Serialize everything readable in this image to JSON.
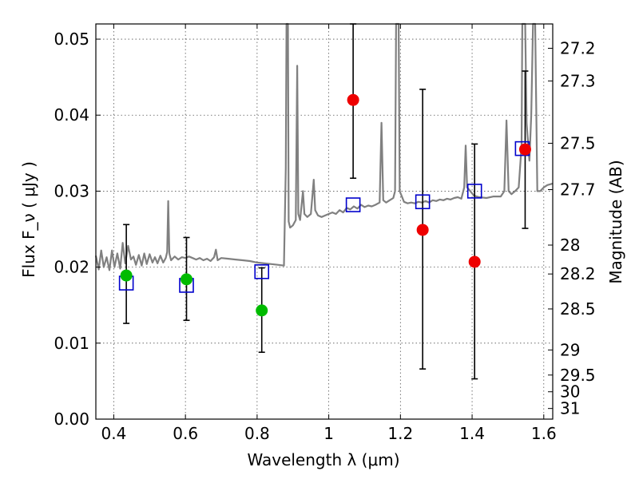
{
  "chart_data": {
    "type": "scatter",
    "xlabel": "Wavelength  λ (μm)",
    "ylabel": "Flux  F_ν  ( μJy )",
    "y2label": "Magnitude (AB)",
    "xlim": [
      0.35,
      1.625
    ],
    "ylim": [
      0.0,
      0.052
    ],
    "x_ticks": [
      0.4,
      0.6,
      0.8,
      1.0,
      1.2,
      1.4,
      1.6
    ],
    "x_tick_labels": [
      "0.4",
      "0.6",
      "0.8",
      "1",
      "1.2",
      "1.4",
      "1.6"
    ],
    "y_ticks": [
      0.0,
      0.01,
      0.02,
      0.03,
      0.04,
      0.05
    ],
    "y_tick_labels": [
      "0.00",
      "0.01",
      "0.02",
      "0.03",
      "0.04",
      "0.05"
    ],
    "mag_ticks": [
      {
        "label": "27.2",
        "flux": 0.0488
      },
      {
        "label": "27.3",
        "flux": 0.0445
      },
      {
        "label": "27.5",
        "flux": 0.0363
      },
      {
        "label": "27.7",
        "flux": 0.0302
      },
      {
        "label": "28",
        "flux": 0.0229
      },
      {
        "label": "28.2",
        "flux": 0.0191
      },
      {
        "label": "28.5",
        "flux": 0.0145
      },
      {
        "label": "29",
        "flux": 0.0091
      },
      {
        "label": "29.5",
        "flux": 0.0058
      },
      {
        "label": "30",
        "flux": 0.0036
      },
      {
        "label": "31",
        "flux": 0.0014
      }
    ],
    "grid": true,
    "colors": {
      "model": "#808080",
      "model_photometry": "#0000cc",
      "detected": "#00bb00",
      "upper": "#ee0000",
      "errorbar": "#000000"
    },
    "series": [
      {
        "kind": "model-spectrum",
        "points": [
          [
            0.35,
            0.0215
          ],
          [
            0.358,
            0.0197
          ],
          [
            0.365,
            0.0222
          ],
          [
            0.372,
            0.02
          ],
          [
            0.38,
            0.0213
          ],
          [
            0.388,
            0.0196
          ],
          [
            0.395,
            0.0222
          ],
          [
            0.402,
            0.02
          ],
          [
            0.41,
            0.0218
          ],
          [
            0.418,
            0.0198
          ],
          [
            0.425,
            0.0232
          ],
          [
            0.432,
            0.0205
          ],
          [
            0.44,
            0.0228
          ],
          [
            0.448,
            0.021
          ],
          [
            0.455,
            0.0214
          ],
          [
            0.462,
            0.0203
          ],
          [
            0.47,
            0.0216
          ],
          [
            0.478,
            0.0202
          ],
          [
            0.485,
            0.0218
          ],
          [
            0.492,
            0.0204
          ],
          [
            0.5,
            0.0217
          ],
          [
            0.508,
            0.0206
          ],
          [
            0.515,
            0.0213
          ],
          [
            0.522,
            0.0205
          ],
          [
            0.53,
            0.0215
          ],
          [
            0.538,
            0.0206
          ],
          [
            0.545,
            0.0212
          ],
          [
            0.549,
            0.022
          ],
          [
            0.552,
            0.0287
          ],
          [
            0.555,
            0.0218
          ],
          [
            0.56,
            0.0209
          ],
          [
            0.57,
            0.0214
          ],
          [
            0.58,
            0.021
          ],
          [
            0.59,
            0.0213
          ],
          [
            0.6,
            0.0212
          ],
          [
            0.61,
            0.0214
          ],
          [
            0.62,
            0.0212
          ],
          [
            0.63,
            0.021
          ],
          [
            0.64,
            0.0212
          ],
          [
            0.65,
            0.0209
          ],
          [
            0.66,
            0.0211
          ],
          [
            0.67,
            0.0208
          ],
          [
            0.68,
            0.0213
          ],
          [
            0.685,
            0.0223
          ],
          [
            0.69,
            0.0209
          ],
          [
            0.7,
            0.0212
          ],
          [
            0.72,
            0.0211
          ],
          [
            0.74,
            0.021
          ],
          [
            0.76,
            0.0209
          ],
          [
            0.78,
            0.0208
          ],
          [
            0.8,
            0.0206
          ],
          [
            0.82,
            0.0205
          ],
          [
            0.84,
            0.0204
          ],
          [
            0.86,
            0.0203
          ],
          [
            0.875,
            0.0202
          ],
          [
            0.88,
            0.033
          ],
          [
            0.882,
            0.052
          ],
          [
            0.886,
            0.052
          ],
          [
            0.888,
            0.026
          ],
          [
            0.892,
            0.0252
          ],
          [
            0.9,
            0.0255
          ],
          [
            0.908,
            0.0262
          ],
          [
            0.912,
            0.0465
          ],
          [
            0.915,
            0.027
          ],
          [
            0.92,
            0.0262
          ],
          [
            0.928,
            0.03
          ],
          [
            0.932,
            0.027
          ],
          [
            0.94,
            0.0266
          ],
          [
            0.95,
            0.027
          ],
          [
            0.958,
            0.0315
          ],
          [
            0.962,
            0.0275
          ],
          [
            0.97,
            0.0268
          ],
          [
            0.98,
            0.0266
          ],
          [
            0.99,
            0.0268
          ],
          [
            1.0,
            0.027
          ],
          [
            1.01,
            0.0272
          ],
          [
            1.02,
            0.027
          ],
          [
            1.03,
            0.0275
          ],
          [
            1.04,
            0.0272
          ],
          [
            1.05,
            0.0278
          ],
          [
            1.06,
            0.0276
          ],
          [
            1.07,
            0.028
          ],
          [
            1.08,
            0.0277
          ],
          [
            1.09,
            0.0282
          ],
          [
            1.1,
            0.0279
          ],
          [
            1.11,
            0.0281
          ],
          [
            1.12,
            0.028
          ],
          [
            1.13,
            0.0282
          ],
          [
            1.142,
            0.0285
          ],
          [
            1.147,
            0.039
          ],
          [
            1.152,
            0.0288
          ],
          [
            1.16,
            0.0285
          ],
          [
            1.17,
            0.0288
          ],
          [
            1.18,
            0.0291
          ],
          [
            1.185,
            0.03
          ],
          [
            1.188,
            0.052
          ],
          [
            1.195,
            0.052
          ],
          [
            1.198,
            0.03
          ],
          [
            1.21,
            0.0286
          ],
          [
            1.22,
            0.0284
          ],
          [
            1.23,
            0.0285
          ],
          [
            1.24,
            0.0284
          ],
          [
            1.25,
            0.0286
          ],
          [
            1.26,
            0.0285
          ],
          [
            1.27,
            0.0287
          ],
          [
            1.28,
            0.0285
          ],
          [
            1.29,
            0.0288
          ],
          [
            1.3,
            0.0287
          ],
          [
            1.31,
            0.0289
          ],
          [
            1.32,
            0.0288
          ],
          [
            1.33,
            0.029
          ],
          [
            1.34,
            0.0289
          ],
          [
            1.35,
            0.0291
          ],
          [
            1.36,
            0.0292
          ],
          [
            1.37,
            0.029
          ],
          [
            1.378,
            0.0305
          ],
          [
            1.382,
            0.036
          ],
          [
            1.386,
            0.0305
          ],
          [
            1.395,
            0.03
          ],
          [
            1.405,
            0.0294
          ],
          [
            1.42,
            0.0292
          ],
          [
            1.44,
            0.0291
          ],
          [
            1.46,
            0.0293
          ],
          [
            1.48,
            0.0293
          ],
          [
            1.49,
            0.03
          ],
          [
            1.496,
            0.0393
          ],
          [
            1.502,
            0.03
          ],
          [
            1.51,
            0.0296
          ],
          [
            1.52,
            0.03
          ],
          [
            1.53,
            0.0305
          ],
          [
            1.538,
            0.036
          ],
          [
            1.54,
            0.052
          ],
          [
            1.548,
            0.052
          ],
          [
            1.552,
            0.039
          ],
          [
            1.56,
            0.034
          ],
          [
            1.565,
            0.04
          ],
          [
            1.57,
            0.052
          ],
          [
            1.576,
            0.052
          ],
          [
            1.582,
            0.03
          ],
          [
            1.59,
            0.03
          ],
          [
            1.6,
            0.0305
          ],
          [
            1.61,
            0.0308
          ],
          [
            1.625,
            0.031
          ]
        ]
      },
      {
        "kind": "model-photometry",
        "points": [
          [
            0.435,
            0.0179
          ],
          [
            0.603,
            0.0176
          ],
          [
            0.813,
            0.0194
          ],
          [
            1.068,
            0.0282
          ],
          [
            1.262,
            0.0286
          ],
          [
            1.407,
            0.03
          ],
          [
            1.54,
            0.0356
          ]
        ]
      },
      {
        "kind": "detections",
        "points": [
          [
            0.435,
            0.0189,
            0.0126,
            0.0256
          ],
          [
            0.603,
            0.0184,
            0.013,
            0.0239
          ],
          [
            0.813,
            0.0143,
            0.0088,
            0.0199
          ]
        ]
      },
      {
        "kind": "non-detections",
        "points": [
          [
            1.068,
            0.042,
            0.0317,
            0.052
          ],
          [
            1.262,
            0.0249,
            0.0066,
            0.0434
          ],
          [
            1.407,
            0.0207,
            0.0053,
            0.0362
          ],
          [
            1.548,
            0.0355,
            0.0251,
            0.0458
          ]
        ]
      }
    ]
  }
}
